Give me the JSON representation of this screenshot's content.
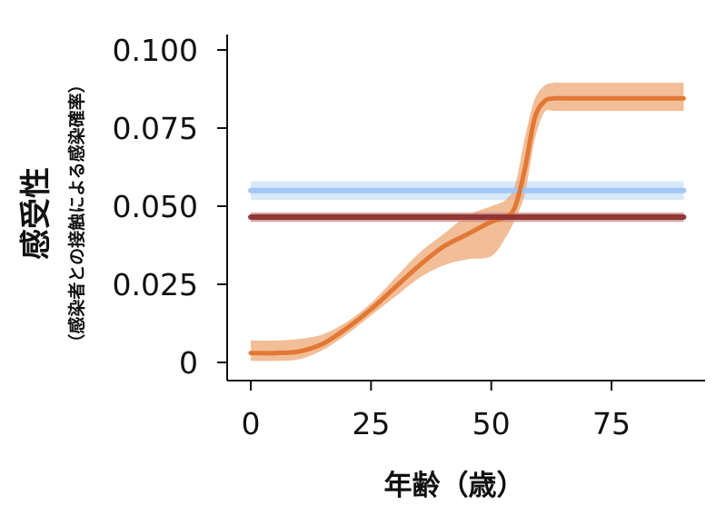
{
  "chart_data": {
    "type": "line",
    "xlabel": "年齢（歳）",
    "ylabel": "感受性",
    "ylabel_sub": "（感染者との接触による感染確率）",
    "xlim": [
      0,
      90
    ],
    "ylim": [
      0,
      0.1
    ],
    "x_ticks": [
      0,
      25,
      50,
      75
    ],
    "x_tick_labels": [
      "0",
      "25",
      "50",
      "75"
    ],
    "y_ticks": [
      0,
      0.025,
      0.05,
      0.075,
      0.1
    ],
    "y_tick_labels": [
      "0",
      "0.025",
      "0.050",
      "0.075",
      "0.100"
    ],
    "grid": false,
    "series": [
      {
        "color": "#e0742f",
        "band_color": "#eda874",
        "x": [
          0,
          5,
          10,
          15,
          20,
          25,
          30,
          35,
          40,
          45,
          50,
          53,
          55,
          57,
          59,
          61,
          63,
          65,
          70,
          75,
          80,
          85,
          90
        ],
        "y": [
          0.003,
          0.003,
          0.0035,
          0.006,
          0.011,
          0.017,
          0.024,
          0.031,
          0.037,
          0.041,
          0.045,
          0.0465,
          0.05,
          0.062,
          0.078,
          0.0835,
          0.0845,
          0.0845,
          0.0845,
          0.0845,
          0.0845,
          0.0845,
          0.0845
        ],
        "lower": [
          0.0005,
          0.0005,
          0.001,
          0.004,
          0.009,
          0.015,
          0.021,
          0.027,
          0.031,
          0.033,
          0.034,
          0.04,
          0.046,
          0.054,
          0.071,
          0.08,
          0.0805,
          0.0805,
          0.0805,
          0.0805,
          0.0805,
          0.0805,
          0.0805
        ],
        "upper": [
          0.007,
          0.007,
          0.0075,
          0.009,
          0.013,
          0.019,
          0.027,
          0.035,
          0.041,
          0.047,
          0.05,
          0.052,
          0.057,
          0.072,
          0.084,
          0.0885,
          0.0895,
          0.0895,
          0.0895,
          0.0895,
          0.0895,
          0.0895,
          0.0895
        ]
      },
      {
        "color": "#9fc6f5",
        "band_color": "#cbe0fa",
        "x": [
          0,
          90
        ],
        "y": [
          0.055,
          0.055
        ],
        "lower": [
          0.052,
          0.052
        ],
        "upper": [
          0.058,
          0.058
        ]
      },
      {
        "color": "#8e2f2f",
        "band_color": "#c48a8a",
        "x": [
          0,
          90
        ],
        "y": [
          0.0465,
          0.0465
        ],
        "lower": [
          0.045,
          0.045
        ],
        "upper": [
          0.048,
          0.048
        ]
      }
    ]
  }
}
